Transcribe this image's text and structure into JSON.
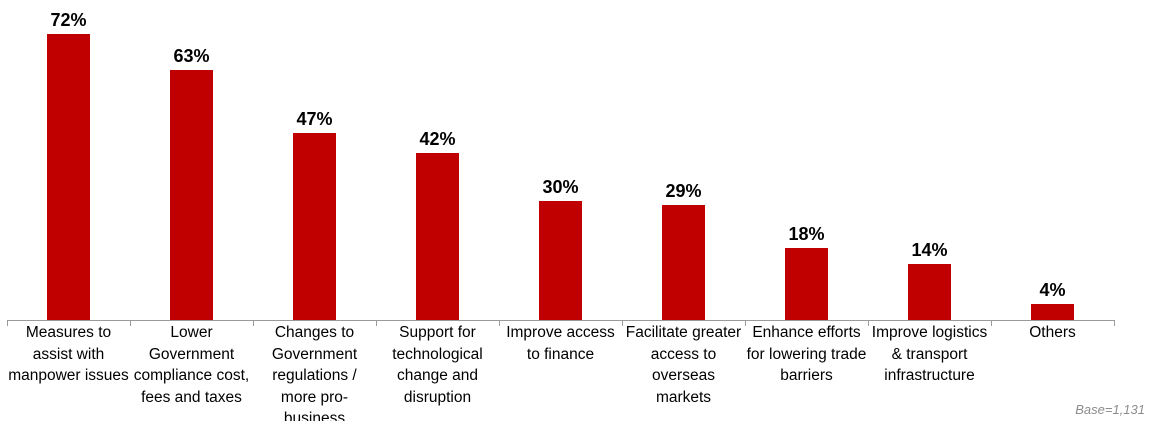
{
  "chart_data": {
    "type": "bar",
    "categories": [
      "Measures to assist with manpower issues",
      "Lower Government compliance cost, fees and taxes",
      "Changes to Government regulations / more pro-business",
      "Support for technological change and disruption",
      "Improve access to finance",
      "Facilitate greater access to overseas markets",
      "Enhance efforts for lowering trade barriers",
      "Improve logistics & transport infrastructure",
      "Others"
    ],
    "values": [
      72,
      63,
      47,
      42,
      30,
      29,
      18,
      14,
      4
    ],
    "value_labels": [
      "72%",
      "63%",
      "47%",
      "42%",
      "30%",
      "29%",
      "18%",
      "14%",
      "4%"
    ],
    "ylim": [
      0,
      72
    ],
    "bar_color": "#c00000",
    "grid": false,
    "legend": "none"
  },
  "base_note": "Base=1,131"
}
